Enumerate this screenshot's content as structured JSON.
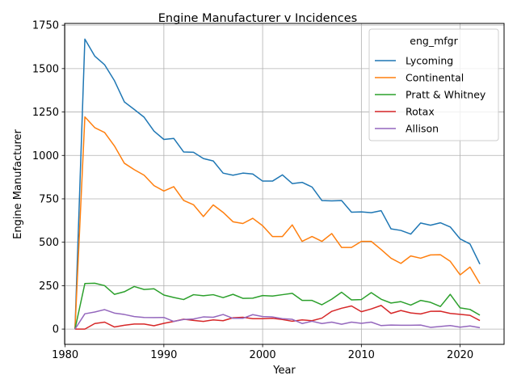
{
  "chart_data": {
    "type": "line",
    "title": "Engine Manufacturer v Incidences",
    "xlabel": "Year",
    "ylabel": "Engine Manufacturer",
    "xlim": [
      1979.95,
      2024.45
    ],
    "ylim": [
      -88,
      1760
    ],
    "xticks": [
      1980,
      1990,
      2000,
      2010,
      2020
    ],
    "yticks": [
      0,
      250,
      500,
      750,
      1000,
      1250,
      1500,
      1750
    ],
    "grid": true,
    "legend": {
      "title": "eng_mfgr",
      "position": "top-right"
    },
    "x": [
      1981,
      1982,
      1983,
      1984,
      1985,
      1986,
      1987,
      1988,
      1989,
      1990,
      1991,
      1992,
      1993,
      1994,
      1995,
      1996,
      1997,
      1998,
      1999,
      2000,
      2001,
      2002,
      2003,
      2004,
      2005,
      2006,
      2007,
      2008,
      2009,
      2010,
      2011,
      2012,
      2013,
      2014,
      2015,
      2016,
      2017,
      2018,
      2019,
      2020,
      2021,
      2022
    ],
    "series": [
      {
        "name": "Lycoming",
        "color": "#1f77b4",
        "values": [
          0,
          1670,
          1572,
          1522,
          1430,
          1308,
          1265,
          1220,
          1140,
          1092,
          1098,
          1020,
          1018,
          982,
          968,
          898,
          886,
          898,
          893,
          852,
          852,
          888,
          838,
          845,
          818,
          740,
          738,
          740,
          673,
          675,
          670,
          682,
          577,
          568,
          547,
          611,
          598,
          612,
          588,
          519,
          490,
          374
        ]
      },
      {
        "name": "Continental",
        "color": "#ff7f0e",
        "values": [
          0,
          1222,
          1160,
          1132,
          1054,
          955,
          918,
          886,
          826,
          795,
          820,
          741,
          716,
          648,
          715,
          672,
          618,
          608,
          638,
          595,
          533,
          533,
          600,
          505,
          533,
          505,
          550,
          470,
          470,
          505,
          505,
          458,
          408,
          378,
          421,
          408,
          427,
          428,
          390,
          312,
          357,
          261
        ]
      },
      {
        "name": "Pratt & Whitney",
        "color": "#2ca02c",
        "values": [
          0,
          262,
          264,
          250,
          200,
          215,
          245,
          228,
          232,
          196,
          182,
          170,
          198,
          192,
          198,
          181,
          200,
          177,
          178,
          193,
          190,
          198,
          206,
          165,
          165,
          140,
          172,
          212,
          168,
          170,
          210,
          172,
          150,
          158,
          138,
          165,
          154,
          130,
          200,
          122,
          113,
          80
        ]
      },
      {
        "name": "Rotax",
        "color": "#d62728",
        "values": [
          0,
          0,
          32,
          40,
          12,
          22,
          29,
          29,
          19,
          33,
          44,
          57,
          50,
          44,
          53,
          48,
          65,
          68,
          60,
          60,
          62,
          55,
          45,
          53,
          48,
          63,
          102,
          120,
          133,
          100,
          116,
          136,
          90,
          107,
          93,
          87,
          102,
          103,
          90,
          85,
          79,
          49
        ]
      },
      {
        "name": "Allison",
        "color": "#9467bd",
        "values": [
          0,
          88,
          98,
          112,
          92,
          84,
          72,
          67,
          66,
          67,
          44,
          55,
          58,
          70,
          68,
          84,
          62,
          62,
          83,
          72,
          70,
          60,
          56,
          32,
          45,
          32,
          40,
          28,
          40,
          33,
          40,
          20,
          23,
          22,
          22,
          23,
          10,
          15,
          20,
          11,
          18,
          8
        ]
      }
    ]
  }
}
